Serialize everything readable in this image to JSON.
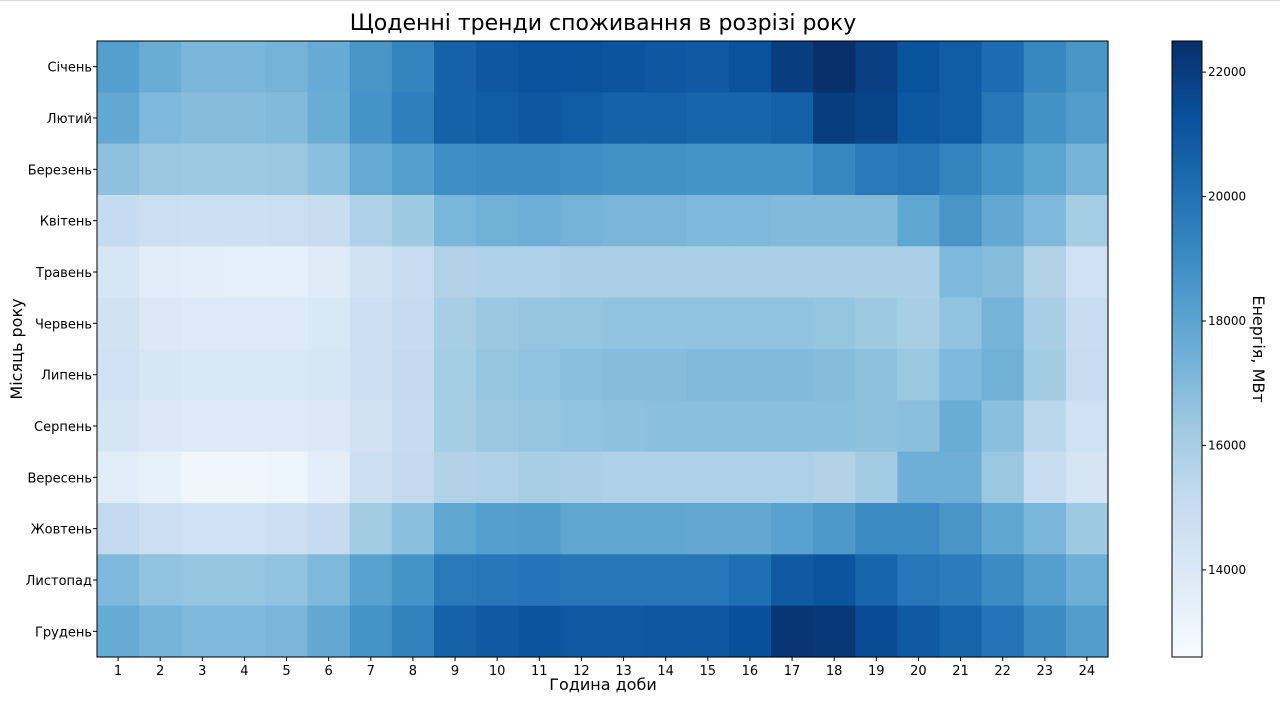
{
  "chart_data": {
    "type": "heatmap",
    "title": "Щоденні тренди споживання в розрізі року",
    "xlabel": "Година доби",
    "ylabel": "Місяць року",
    "x_categories": [
      "1",
      "2",
      "3",
      "4",
      "5",
      "6",
      "7",
      "8",
      "9",
      "10",
      "11",
      "12",
      "13",
      "14",
      "15",
      "16",
      "17",
      "18",
      "19",
      "20",
      "21",
      "22",
      "23",
      "24"
    ],
    "y_categories": [
      "Січень",
      "Лютий",
      "Березень",
      "Квітень",
      "Травень",
      "Червень",
      "Липень",
      "Серпень",
      "Вересень",
      "Жовтень",
      "Листопад",
      "Грудень"
    ],
    "values": [
      [
        18200,
        17600,
        17200,
        17200,
        17300,
        17700,
        18600,
        19300,
        20600,
        21000,
        21200,
        21200,
        21100,
        21000,
        20900,
        21200,
        22000,
        22500,
        21900,
        21200,
        20800,
        20200,
        19200,
        18600
      ],
      [
        17800,
        17100,
        16900,
        16900,
        17000,
        17600,
        18700,
        19500,
        20600,
        20800,
        21000,
        20800,
        20600,
        20600,
        20500,
        20500,
        20700,
        22000,
        21800,
        21000,
        20800,
        19800,
        18800,
        18300
      ],
      [
        16700,
        16400,
        16300,
        16300,
        16400,
        16800,
        17700,
        18200,
        18900,
        19000,
        19000,
        18900,
        18800,
        18800,
        18700,
        18700,
        18700,
        19200,
        19700,
        19800,
        19300,
        18700,
        18000,
        17300
      ],
      [
        15100,
        14800,
        14700,
        14700,
        14800,
        15000,
        15800,
        16300,
        17200,
        17400,
        17500,
        17300,
        17200,
        17200,
        17100,
        17100,
        17000,
        17000,
        17000,
        17900,
        18600,
        17800,
        17100,
        16100
      ],
      [
        14200,
        13700,
        13600,
        13500,
        13500,
        13800,
        14500,
        15000,
        15700,
        15800,
        15800,
        15900,
        15900,
        15900,
        15900,
        15900,
        15900,
        15900,
        15900,
        15900,
        17100,
        16900,
        15700,
        14600
      ],
      [
        14500,
        14000,
        13900,
        13900,
        13900,
        14100,
        14700,
        15100,
        16000,
        16400,
        16500,
        16500,
        16600,
        16600,
        16600,
        16600,
        16600,
        16500,
        16300,
        16000,
        16600,
        17300,
        16000,
        14900
      ],
      [
        14600,
        14200,
        14100,
        14100,
        14100,
        14200,
        14700,
        15200,
        16100,
        16500,
        16600,
        16800,
        16900,
        16900,
        17000,
        17000,
        17000,
        16900,
        16700,
        16400,
        17100,
        17400,
        16200,
        15000
      ],
      [
        14300,
        14000,
        13900,
        13900,
        13900,
        14000,
        14500,
        15100,
        16100,
        16400,
        16500,
        16600,
        16700,
        16800,
        16800,
        16800,
        16800,
        16800,
        16700,
        16800,
        17600,
        16800,
        15400,
        14600
      ],
      [
        13700,
        13400,
        13000,
        13000,
        13100,
        13600,
        14800,
        15200,
        15700,
        15800,
        16000,
        15900,
        15800,
        15800,
        15800,
        15800,
        15800,
        15700,
        16200,
        17500,
        17500,
        16400,
        14900,
        14300
      ],
      [
        15200,
        14800,
        14600,
        14600,
        14700,
        15100,
        16200,
        16800,
        17900,
        18200,
        18300,
        17900,
        17900,
        17900,
        17800,
        17800,
        18100,
        18500,
        19000,
        19000,
        18600,
        17900,
        17200,
        16300
      ],
      [
        17100,
        16600,
        16500,
        16500,
        16600,
        17100,
        18100,
        18700,
        19700,
        19800,
        19900,
        19800,
        19800,
        19800,
        19800,
        20100,
        20900,
        21100,
        20500,
        19800,
        19600,
        19000,
        18200,
        17500
      ],
      [
        17700,
        17300,
        17100,
        17100,
        17200,
        17800,
        18700,
        19400,
        20600,
        20900,
        21100,
        20900,
        20900,
        21000,
        21000,
        21300,
        22300,
        22200,
        21500,
        20900,
        20500,
        19900,
        19000,
        18300
      ]
    ],
    "colorbar": {
      "label": "Енергія, МВт",
      "min": 12600,
      "max": 22500,
      "ticks": [
        "14000",
        "16000",
        "18000",
        "20000",
        "22000"
      ]
    },
    "colormap": "Blues",
    "grid": false
  }
}
